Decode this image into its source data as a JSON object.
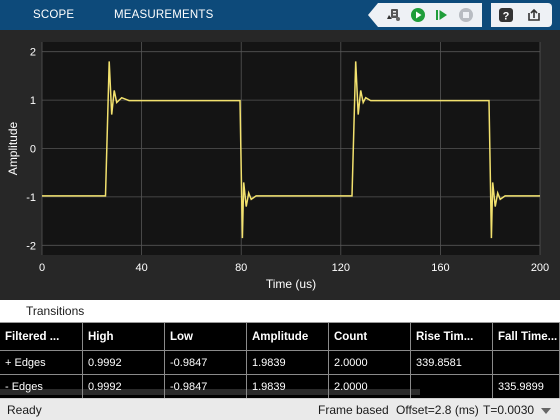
{
  "toolbar": {
    "tab_scope": "SCOPE",
    "tab_measurements": "MEASUREMENTS",
    "accent": "#0d4a7a"
  },
  "chart_data": {
    "type": "line",
    "title": "",
    "xlabel": "Time (us)",
    "ylabel": "Amplitude",
    "xlim": [
      0,
      200
    ],
    "ylim": [
      -2.2,
      2.2
    ],
    "xticks": [
      "0",
      "40",
      "80",
      "120",
      "160",
      "200"
    ],
    "yticks": [
      "2",
      "1",
      "0",
      "-1",
      "-2"
    ],
    "grid": true,
    "line_color": "#f2e16e",
    "series": [
      {
        "x": [
          0,
          12,
          25.5,
          27,
          28,
          29,
          30,
          32,
          35,
          60,
          79.5,
          80.5,
          81,
          82,
          83,
          84,
          86,
          89,
          110,
          124.5,
          126,
          127,
          128,
          129,
          130,
          132,
          135,
          160,
          179.5,
          180.5,
          181,
          182,
          183,
          184,
          186,
          189,
          200
        ],
        "y": [
          -0.98,
          -0.98,
          -0.98,
          1.8,
          0.7,
          1.2,
          0.95,
          1.05,
          0.99,
          0.99,
          0.99,
          -1.85,
          -0.7,
          -1.2,
          -0.92,
          -1.05,
          -0.98,
          -0.98,
          -0.98,
          -0.98,
          1.8,
          0.7,
          1.2,
          0.95,
          1.05,
          0.99,
          0.99,
          0.99,
          0.99,
          -1.85,
          -0.7,
          -1.2,
          -0.92,
          -1.05,
          -0.98,
          -0.98,
          -0.98
        ]
      }
    ]
  },
  "panel": {
    "title": "Transitions",
    "headers": [
      "Filtered ...",
      "High",
      "Low",
      "Amplitude",
      "Count",
      "Rise Tim...",
      "Fall Time..."
    ],
    "rows": [
      [
        "+ Edges",
        "0.9992",
        "-0.9847",
        "1.9839",
        "2.0000",
        "339.8581",
        ""
      ],
      [
        "- Edges",
        "0.9992",
        "-0.9847",
        "1.9839",
        "2.0000",
        "",
        "335.9899"
      ]
    ]
  },
  "status": {
    "ready": "Ready",
    "frame": "Frame based",
    "offset": "Offset=2.8 (ms)",
    "t": "T=0.0030"
  }
}
